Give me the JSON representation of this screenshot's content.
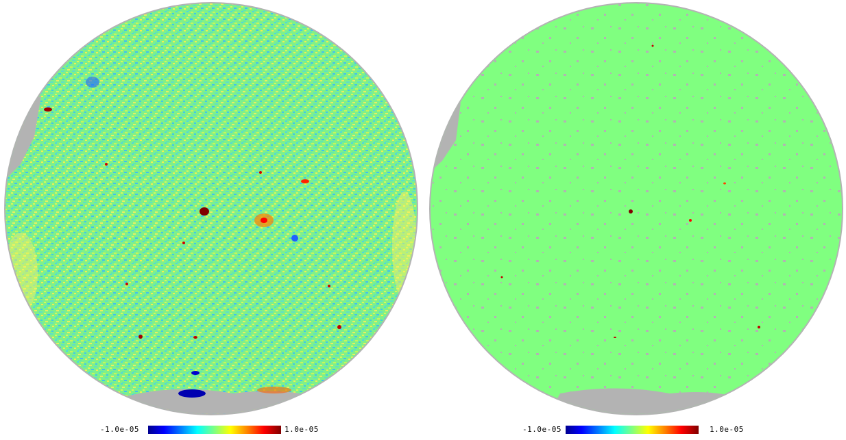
{
  "panels": [
    {
      "id": "left",
      "colorbar": {
        "min_label": "-1.0e-05",
        "max_label": "1.0e-05"
      },
      "colors": {
        "background": "#80ff80",
        "mask": "#b3b3b3"
      }
    },
    {
      "id": "right",
      "colorbar": {
        "min_label": "-1.0e-05",
        "max_label": "1.0e-05"
      },
      "colors": {
        "background": "#80ff80",
        "mask": "#b3b3b3"
      }
    }
  ],
  "colormap": [
    "#00008f",
    "#0000ff",
    "#0080ff",
    "#00ffff",
    "#80ff80",
    "#ffff00",
    "#ff8000",
    "#ff0000",
    "#800000"
  ]
}
